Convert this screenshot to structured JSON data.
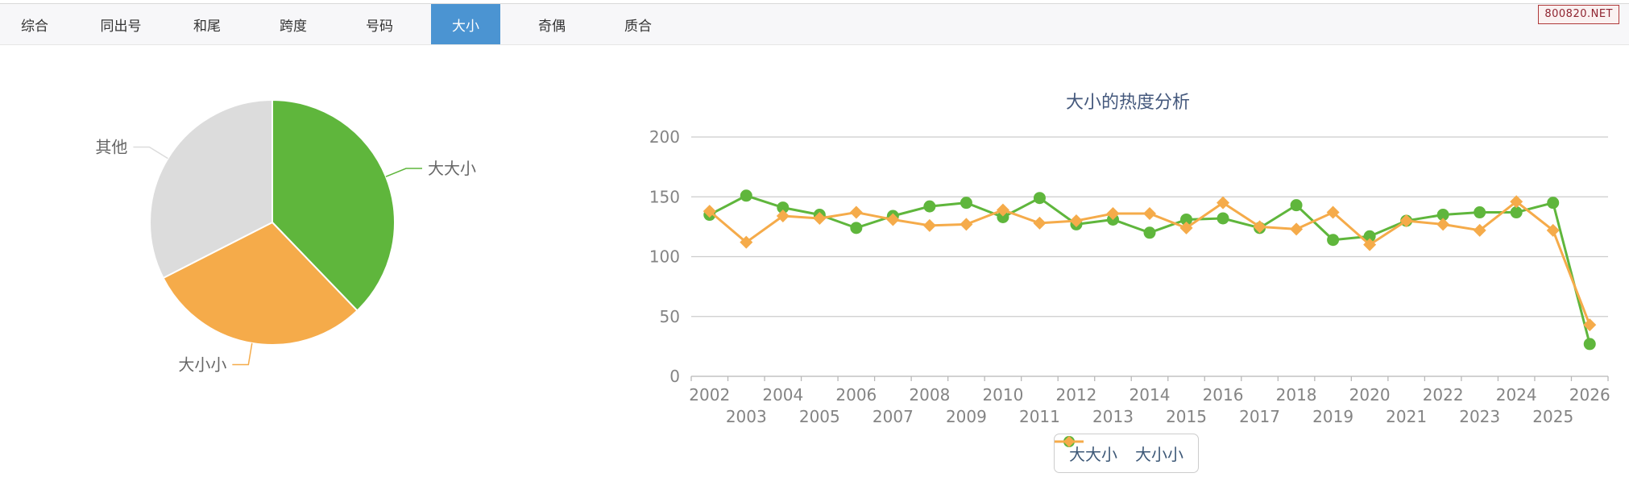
{
  "badge": {
    "text": "800820.NET"
  },
  "tabs": {
    "items": [
      {
        "label": "综合",
        "active": false
      },
      {
        "label": "同出号",
        "active": false
      },
      {
        "label": "和尾",
        "active": false
      },
      {
        "label": "跨度",
        "active": false
      },
      {
        "label": "号码",
        "active": false
      },
      {
        "label": "大小",
        "active": true
      },
      {
        "label": "奇偶",
        "active": false
      },
      {
        "label": "质合",
        "active": false
      }
    ],
    "active_color": "#4b94d2"
  },
  "chart_data": [
    {
      "type": "pie",
      "labels": [
        "大大小",
        "大小小",
        "其他"
      ],
      "values": [
        37.8,
        29.7,
        32.5
      ],
      "unit": "percent",
      "colors": [
        "#5fb63c",
        "#f5ab4a",
        "#dcdcdc"
      ],
      "label_color": "#666666",
      "legend_position": "none"
    },
    {
      "type": "line",
      "title": "大小的热度分析",
      "title_color": "#44587c",
      "x": [
        "2002",
        "2003",
        "2004",
        "2005",
        "2006",
        "2007",
        "2008",
        "2009",
        "2010",
        "2011",
        "2012",
        "2013",
        "2014",
        "2015",
        "2016",
        "2017",
        "2018",
        "2019",
        "2020",
        "2021",
        "2022",
        "2023",
        "2024",
        "2025",
        "2026"
      ],
      "series": [
        {
          "name": "大大小",
          "color": "#5fb63c",
          "marker": "circle",
          "values": [
            135,
            151,
            141,
            135,
            124,
            134,
            142,
            145,
            133,
            149,
            127,
            131,
            120,
            131,
            132,
            124,
            143,
            114,
            117,
            130,
            135,
            137,
            137,
            145,
            27
          ]
        },
        {
          "name": "大小小",
          "color": "#f5ab4a",
          "marker": "diamond",
          "values": [
            138,
            112,
            134,
            132,
            137,
            131,
            126,
            127,
            139,
            128,
            130,
            136,
            136,
            124,
            145,
            125,
            123,
            137,
            110,
            130,
            127,
            122,
            146,
            122,
            43
          ]
        }
      ],
      "ylim": [
        0,
        200
      ],
      "yticks": [
        0,
        50,
        100,
        150,
        200
      ],
      "grid": true,
      "axis_color": "#848484",
      "grid_color": "#cccccc",
      "legend_position": "bottom"
    }
  ]
}
